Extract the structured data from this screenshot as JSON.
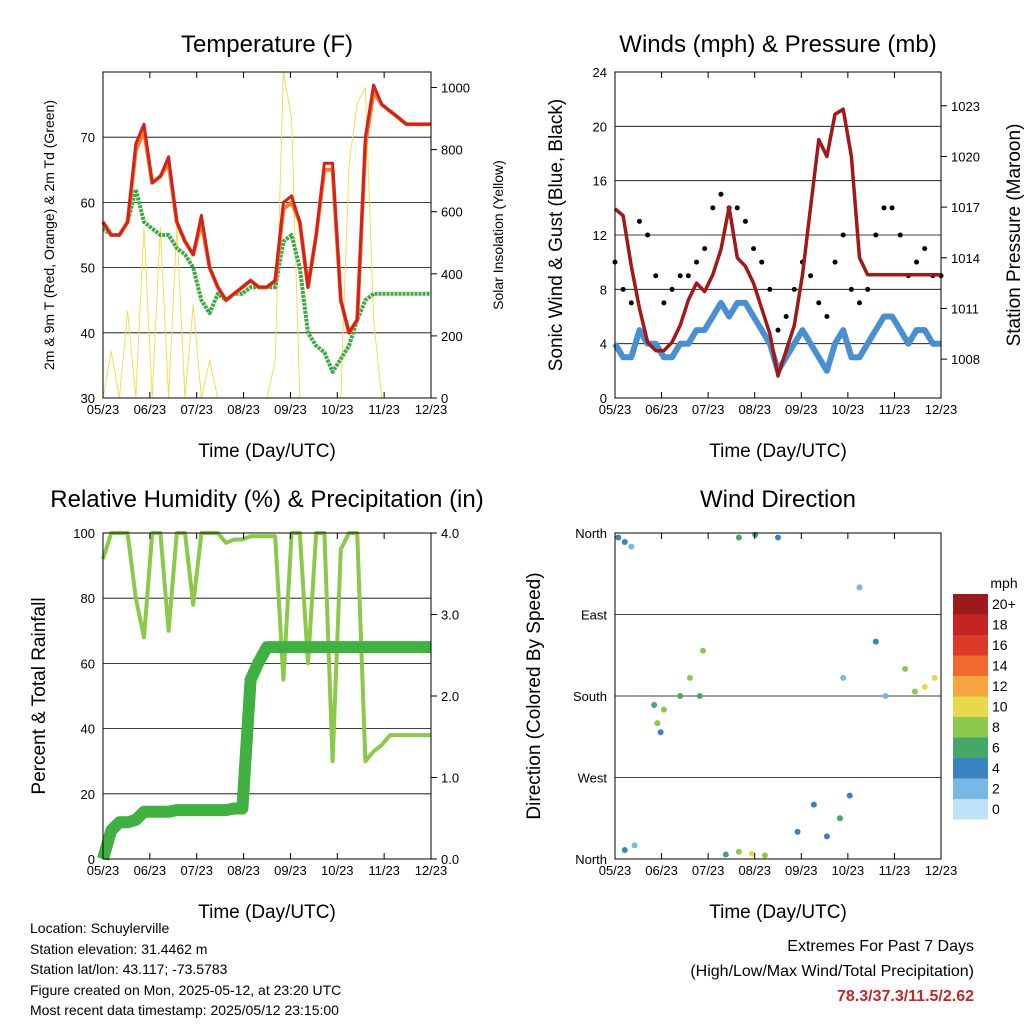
{
  "x_ticks": [
    "05/23",
    "06/23",
    "07/23",
    "08/23",
    "09/23",
    "10/23",
    "11/23",
    "12/23"
  ],
  "info": {
    "location": "Location: Schuylerville",
    "elevation": "Station elevation: 31.4462 m",
    "latlon": "Station lat/lon: 43.117; -73.5783",
    "created": "Figure created on Mon, 2025-05-12, at 23:20 UTC",
    "recent": "Most recent data timestamp: 2025/05/12 23:15:00"
  },
  "extremes": {
    "title": "Extremes For Past 7 Days",
    "subtitle": "(High/Low/Max Wind/Total Precipitation)",
    "values": "78.3/37.3/11.5/2.62"
  },
  "colors": {
    "temp_2m": "#d42020",
    "temp_9m": "#f08020",
    "dewpoint": "#40a840",
    "solar": "#f4dc50",
    "wind": "#4a8fd0",
    "gust": "#000000",
    "pressure": "#a01818",
    "rh": "#8cc84a",
    "precip": "#40b040"
  },
  "chart_data": [
    {
      "type": "line",
      "title": "Temperature (F)",
      "xlabel": "Time (Day/UTC)",
      "ylabel": "2m & 9m T (Red, Orange) & 2m Td (Green)",
      "ylabel_right": "Solar Insolation (Yellow)",
      "ylim": [
        30,
        80
      ],
      "yticks": [
        30,
        40,
        50,
        60,
        70
      ],
      "ylim_right": [
        0,
        1050
      ],
      "yticks_right": [
        0,
        200,
        400,
        600,
        800,
        1000
      ],
      "x": [
        0,
        0.25,
        0.5,
        0.75,
        1,
        1.25,
        1.5,
        1.75,
        2,
        2.25,
        2.5,
        2.75,
        3,
        3.25,
        3.5,
        3.75,
        4,
        4.25,
        4.5,
        4.75,
        5,
        5.25,
        5.5,
        5.75,
        6,
        6.25,
        6.5,
        6.75,
        7,
        7.25,
        7.5,
        7.75,
        8,
        8.25,
        8.5,
        8.75,
        9,
        9.25,
        9.5,
        9.75,
        10
      ],
      "series": [
        {
          "name": "2m T",
          "values": [
            57,
            55,
            55,
            57,
            69,
            72,
            63,
            64,
            67,
            57,
            54,
            52,
            58,
            50,
            47,
            45,
            46,
            47,
            48,
            47,
            47,
            48,
            60,
            61,
            57,
            47,
            55,
            66,
            66,
            45,
            40,
            42,
            70,
            78,
            75,
            74,
            73,
            72,
            72,
            72,
            72
          ]
        },
        {
          "name": "9m T",
          "values": [
            57,
            55,
            55,
            57,
            68,
            71,
            63,
            64,
            66,
            57,
            54,
            52,
            57,
            50,
            47,
            45,
            46,
            47,
            48,
            47,
            47,
            48,
            59,
            60,
            57,
            47,
            55,
            65,
            65,
            45,
            40,
            42,
            69,
            77,
            75,
            74,
            73,
            72,
            72,
            72,
            72
          ]
        },
        {
          "name": "2m Td",
          "values": [
            56,
            55,
            55,
            57,
            62,
            57,
            56,
            55,
            55,
            53,
            52,
            50,
            45,
            43,
            46,
            45,
            46,
            46,
            47,
            47,
            47,
            47,
            54,
            55,
            50,
            40,
            38,
            37,
            34,
            36,
            38,
            42,
            45,
            46,
            46,
            46,
            46,
            46,
            46,
            46,
            46
          ]
        },
        {
          "name": "Solar",
          "values": [
            0,
            150,
            0,
            280,
            0,
            550,
            0,
            550,
            0,
            550,
            0,
            300,
            0,
            120,
            0,
            0,
            0,
            0,
            0,
            0,
            0,
            120,
            1050,
            900,
            0,
            0,
            0,
            0,
            0,
            0,
            750,
            950,
            1000,
            250,
            0,
            0,
            0,
            0,
            0,
            0,
            0
          ]
        }
      ]
    },
    {
      "type": "line",
      "title": "Winds (mph) & Pressure (mb)",
      "xlabel": "Time (Day/UTC)",
      "ylabel": "Sonic Wind & Gust (Blue, Black)",
      "ylabel_right": "Station Pressure (Maroon)",
      "ylim": [
        0,
        24
      ],
      "yticks": [
        0,
        4,
        8,
        12,
        16,
        20,
        24
      ],
      "ylim_right": [
        1005.7,
        1025.0
      ],
      "yticks_right": [
        1008,
        1011,
        1014,
        1017,
        1020,
        1023
      ],
      "x": [
        0,
        0.25,
        0.5,
        0.75,
        1,
        1.25,
        1.5,
        1.75,
        2,
        2.25,
        2.5,
        2.75,
        3,
        3.25,
        3.5,
        3.75,
        4,
        4.25,
        4.5,
        4.75,
        5,
        5.25,
        5.5,
        5.75,
        6,
        6.25,
        6.5,
        6.75,
        7,
        7.25,
        7.5,
        7.75,
        8,
        8.25,
        8.5,
        8.75,
        9,
        9.25,
        9.5,
        9.75,
        10
      ],
      "series": [
        {
          "name": "Wind",
          "values": [
            4,
            3,
            3,
            5,
            4,
            4,
            3,
            3,
            4,
            4,
            5,
            5,
            6,
            7,
            6,
            7,
            7,
            6,
            5,
            4,
            2,
            3,
            4,
            5,
            4,
            3,
            2,
            4,
            5,
            3,
            3,
            4,
            5,
            6,
            6,
            5,
            4,
            5,
            5,
            4,
            4
          ]
        },
        {
          "name": "Gust",
          "values": [
            10,
            8,
            7,
            13,
            12,
            9,
            7,
            8,
            9,
            9,
            10,
            11,
            14,
            15,
            14,
            14,
            13,
            11,
            10,
            8,
            5,
            6,
            8,
            10,
            9,
            7,
            6,
            10,
            12,
            8,
            7,
            8,
            12,
            14,
            14,
            12,
            9,
            10,
            11,
            9,
            9
          ]
        },
        {
          "name": "Pressure",
          "values": [
            1016.9,
            1016.5,
            1013.5,
            1011.0,
            1009.0,
            1008.5,
            1008.5,
            1009.0,
            1010.0,
            1011.5,
            1012.5,
            1012.0,
            1013.0,
            1014.5,
            1017.0,
            1014.0,
            1013.5,
            1012.5,
            1011.0,
            1009.5,
            1007.0,
            1008.5,
            1010.0,
            1013.0,
            1017.0,
            1021.0,
            1020.0,
            1022.5,
            1022.8,
            1020.0,
            1014.0,
            1013.0,
            1013.0,
            1013.0,
            1013.0,
            1013.0,
            1013.0,
            1013.0,
            1013.0,
            1013.0,
            1013.0
          ]
        }
      ]
    },
    {
      "type": "line",
      "title": "Relative Humidity (%) & Precipitation (in)",
      "xlabel": "Time (Day/UTC)",
      "ylabel": "Percent & Total Rainfall",
      "ylim": [
        0,
        100
      ],
      "yticks": [
        0,
        20,
        40,
        60,
        80,
        100
      ],
      "ylim_right": [
        0,
        4.0
      ],
      "yticks_right": [
        "0.0",
        "1.0",
        "2.0",
        "3.0",
        "4.0"
      ],
      "x": [
        0,
        0.25,
        0.5,
        0.75,
        1,
        1.25,
        1.5,
        1.75,
        2,
        2.25,
        2.5,
        2.75,
        3,
        3.25,
        3.5,
        3.75,
        4,
        4.25,
        4.5,
        4.75,
        5,
        5.25,
        5.5,
        5.75,
        6,
        6.25,
        6.5,
        6.75,
        7,
        7.25,
        7.5,
        7.75,
        8,
        8.25,
        8.5,
        8.75,
        9,
        9.25,
        9.5,
        9.75,
        10
      ],
      "series": [
        {
          "name": "RH",
          "values": [
            92,
            100,
            100,
            100,
            80,
            68,
            100,
            100,
            70,
            100,
            100,
            78,
            100,
            100,
            100,
            97,
            98,
            98,
            99,
            99,
            99,
            99,
            55,
            100,
            100,
            60,
            100,
            100,
            30,
            95,
            100,
            100,
            30,
            33,
            35,
            38,
            38,
            38,
            38,
            38,
            38
          ]
        },
        {
          "name": "Precipitation",
          "values": [
            0,
            0.35,
            0.45,
            0.45,
            0.48,
            0.58,
            0.58,
            0.58,
            0.58,
            0.6,
            0.6,
            0.6,
            0.6,
            0.6,
            0.6,
            0.6,
            0.62,
            0.62,
            2.2,
            2.42,
            2.6,
            2.6,
            2.6,
            2.6,
            2.6,
            2.6,
            2.6,
            2.6,
            2.6,
            2.6,
            2.6,
            2.6,
            2.6,
            2.6,
            2.6,
            2.6,
            2.6,
            2.6,
            2.6,
            2.6,
            2.6
          ]
        }
      ]
    },
    {
      "type": "scatter",
      "title": "Wind Direction",
      "xlabel": "Time (Day/UTC)",
      "ylabel": "Direction (Colored By Speed)",
      "ylim": [
        0,
        360
      ],
      "yticks": [
        "North",
        "East",
        "South",
        "West",
        "North"
      ],
      "legend_title": "mph",
      "legend_labels": [
        "20+",
        "18",
        "16",
        "14",
        "12",
        "10",
        "8",
        "6",
        "4",
        "2",
        "0"
      ],
      "legend_colors": [
        "#9e1a1a",
        "#c52424",
        "#de3a2a",
        "#f06a2e",
        "#f6a640",
        "#e8d84c",
        "#8cc84a",
        "#46a866",
        "#3a82c0",
        "#78b8e6",
        "#bfe2f6"
      ],
      "points": [
        {
          "x": 0.1,
          "dir": 355,
          "speed": 3
        },
        {
          "x": 0.3,
          "dir": 350,
          "speed": 4
        },
        {
          "x": 0.5,
          "dir": 345,
          "speed": 2
        },
        {
          "x": 0.3,
          "dir": 10,
          "speed": 3
        },
        {
          "x": 0.6,
          "dir": 15,
          "speed": 2
        },
        {
          "x": 1.2,
          "dir": 170,
          "speed": 5
        },
        {
          "x": 1.3,
          "dir": 150,
          "speed": 7
        },
        {
          "x": 1.5,
          "dir": 165,
          "speed": 8
        },
        {
          "x": 1.4,
          "dir": 140,
          "speed": 4
        },
        {
          "x": 2.0,
          "dir": 180,
          "speed": 6
        },
        {
          "x": 2.3,
          "dir": 200,
          "speed": 7
        },
        {
          "x": 2.7,
          "dir": 230,
          "speed": 8
        },
        {
          "x": 2.6,
          "dir": 180,
          "speed": 5
        },
        {
          "x": 3.4,
          "dir": 5,
          "speed": 6
        },
        {
          "x": 3.8,
          "dir": 8,
          "speed": 8
        },
        {
          "x": 4.2,
          "dir": 6,
          "speed": 9
        },
        {
          "x": 4.6,
          "dir": 4,
          "speed": 7
        },
        {
          "x": 3.8,
          "dir": 355,
          "speed": 5
        },
        {
          "x": 4.3,
          "dir": 358,
          "speed": 6
        },
        {
          "x": 5.0,
          "dir": 355,
          "speed": 4
        },
        {
          "x": 5.6,
          "dir": 30,
          "speed": 3
        },
        {
          "x": 6.1,
          "dir": 60,
          "speed": 3
        },
        {
          "x": 6.5,
          "dir": 25,
          "speed": 4
        },
        {
          "x": 6.9,
          "dir": 45,
          "speed": 6
        },
        {
          "x": 7.2,
          "dir": 70,
          "speed": 4
        },
        {
          "x": 7.0,
          "dir": 200,
          "speed": 2
        },
        {
          "x": 7.5,
          "dir": 300,
          "speed": 2
        },
        {
          "x": 8.0,
          "dir": 240,
          "speed": 3
        },
        {
          "x": 8.3,
          "dir": 180,
          "speed": 2
        },
        {
          "x": 8.9,
          "dir": 210,
          "speed": 7
        },
        {
          "x": 9.2,
          "dir": 185,
          "speed": 8
        },
        {
          "x": 9.5,
          "dir": 190,
          "speed": 9
        },
        {
          "x": 9.8,
          "dir": 200,
          "speed": 10
        }
      ]
    }
  ]
}
